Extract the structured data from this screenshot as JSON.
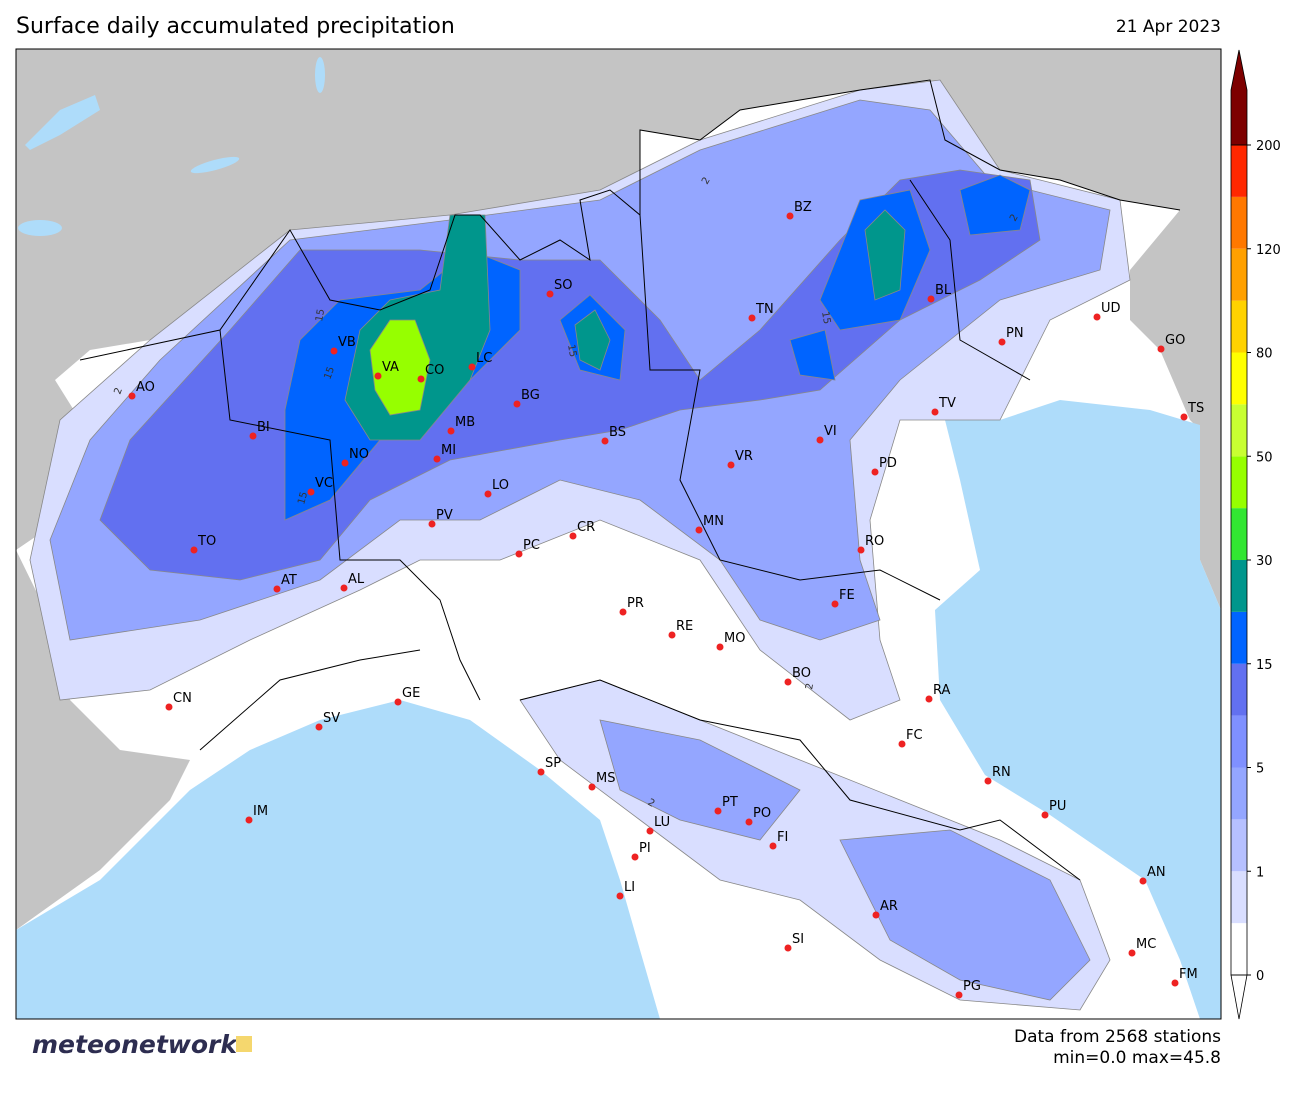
{
  "header": {
    "title": "Surface daily accumulated precipitation",
    "date": "21 Apr 2023"
  },
  "colorbar": {
    "ticks": [
      0,
      1,
      5,
      15,
      30,
      50,
      80,
      120,
      200
    ],
    "colors": [
      "#ffffff",
      "#d9deff",
      "#b6c0ff",
      "#94a6ff",
      "#7f90ff",
      "#6270f0",
      "#0064ff",
      "#00968c",
      "#32e632",
      "#96ff00",
      "#c8ff32",
      "#ffff00",
      "#ffd200",
      "#ffa000",
      "#ff7800",
      "#ff2800"
    ],
    "over_color": "#7d0000"
  },
  "cities": [
    "AO",
    "VB",
    "BI",
    "NO",
    "VA",
    "CO",
    "LC",
    "SO",
    "MB",
    "MI",
    "BG",
    "BS",
    "VC",
    "TO",
    "AT",
    "AL",
    "PV",
    "LO",
    "CR",
    "PC",
    "BZ",
    "TN",
    "BL",
    "UD",
    "PN",
    "GO",
    "TS",
    "TV",
    "VI",
    "VR",
    "PD",
    "MN",
    "RO",
    "FE",
    "PR",
    "RE",
    "MO",
    "BO",
    "RA",
    "FC",
    "RN",
    "PU",
    "AN",
    "MC",
    "FM",
    "CN",
    "GE",
    "SV",
    "SP",
    "MS",
    "IM",
    "PT",
    "PO",
    "FI",
    "LU",
    "PI",
    "LI",
    "AR",
    "SI",
    "PG"
  ],
  "contour_labels": [
    15,
    15,
    15,
    15,
    15,
    2,
    2,
    2,
    2,
    2
  ],
  "footer": {
    "logo": "meteonetwork",
    "stations": "Data from 2568 stations",
    "range": "min=0.0 max=45.8"
  }
}
